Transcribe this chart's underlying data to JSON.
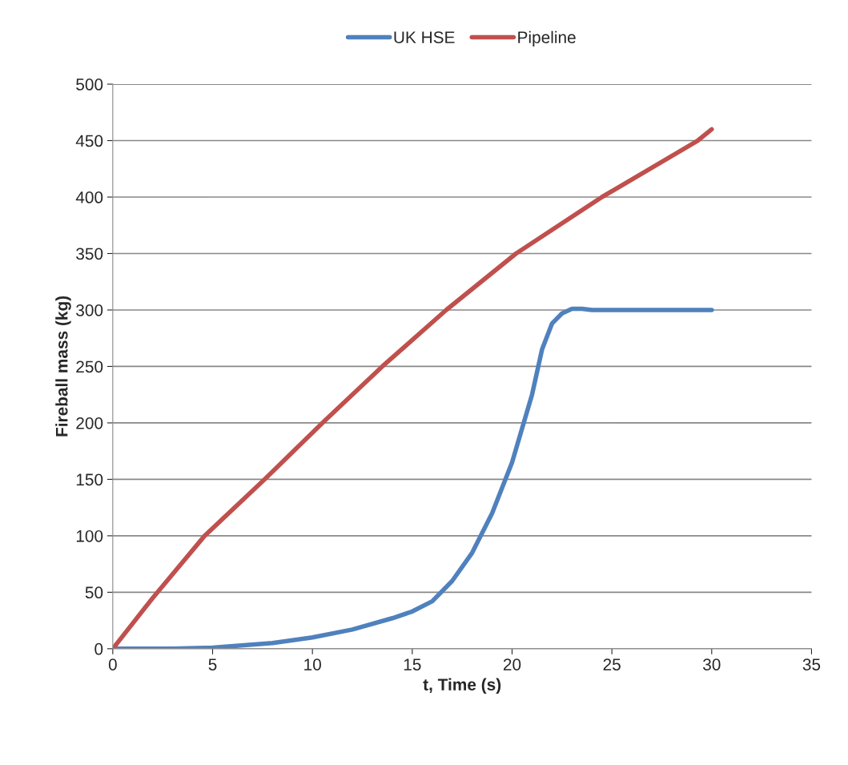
{
  "chart_data": {
    "type": "line",
    "xlabel": "t, Time (s)",
    "ylabel": "Fireball mass (kg)",
    "xlim": [
      0,
      35
    ],
    "xticks": [
      0,
      5,
      10,
      15,
      20,
      25,
      30,
      35
    ],
    "ylim": [
      0,
      500
    ],
    "yticks": [
      0,
      50,
      100,
      150,
      200,
      250,
      300,
      350,
      400,
      450,
      500
    ],
    "grid": "y",
    "legend": "top",
    "marker": "none",
    "line_style": "solid",
    "series": [
      {
        "name": "UK HSE",
        "color": "#4f81bd",
        "x": [
          0,
          3,
          5,
          8,
          10,
          12,
          14,
          15,
          16,
          17,
          18,
          19,
          20,
          21,
          21.5,
          22,
          22.5,
          23,
          23.5,
          24,
          30
        ],
        "values": [
          0,
          0,
          1,
          5,
          10,
          17,
          27,
          33,
          42,
          60,
          85,
          120,
          165,
          225,
          265,
          288,
          297,
          301,
          301,
          300,
          300
        ]
      },
      {
        "name": "Pipeline",
        "color": "#c0504d",
        "x": [
          0,
          2,
          4.6,
          7.6,
          10.5,
          13.5,
          16.7,
          20.2,
          24.5,
          29.3,
          30
        ],
        "values": [
          0,
          45,
          100,
          150,
          200,
          250,
          300,
          350,
          400,
          450,
          460
        ]
      }
    ]
  }
}
